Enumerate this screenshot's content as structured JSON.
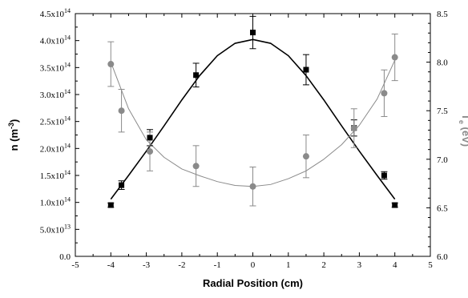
{
  "chart_data": {
    "type": "scatter",
    "title": "",
    "xlabel": "Radial Position (cm)",
    "ylabel": "n (m",
    "ylabel_sup": "-3",
    "ylabel_suffix": ")",
    "y2label_main": "T",
    "y2label_sub": "e",
    "y2label_rest": "(eV)",
    "xlim": [
      -5,
      5
    ],
    "ylim": [
      0,
      450000000000000.0
    ],
    "y2lim": [
      6.0,
      8.5
    ],
    "x_ticks": [
      "-5",
      "-4",
      "-3",
      "-2",
      "-1",
      "0",
      "1",
      "2",
      "3",
      "4",
      "5"
    ],
    "y_ticks": [
      {
        "mant": "0.0",
        "exp": ""
      },
      {
        "mant": "5.0x10",
        "exp": "13"
      },
      {
        "mant": "1.0x10",
        "exp": "14"
      },
      {
        "mant": "1.5x10",
        "exp": "14"
      },
      {
        "mant": "2.0x10",
        "exp": "14"
      },
      {
        "mant": "2.5x10",
        "exp": "14"
      },
      {
        "mant": "3.0x10",
        "exp": "14"
      },
      {
        "mant": "3.5x10",
        "exp": "14"
      },
      {
        "mant": "4.0x10",
        "exp": "14"
      },
      {
        "mant": "4.5x10",
        "exp": "14"
      }
    ],
    "y2_ticks": [
      "6.0",
      "6.5",
      "7.0",
      "7.5",
      "8.0",
      "8.5"
    ],
    "grid": false,
    "series": [
      {
        "axis": "left",
        "marker": "square",
        "color": "#000000",
        "x": [
          -4.0,
          -3.7,
          -2.9,
          -1.6,
          0.0,
          1.5,
          2.85,
          3.7,
          4.0
        ],
        "y": [
          95000000000000.0,
          132000000000000.0,
          220000000000000.0,
          336000000000000.0,
          415000000000000.0,
          346000000000000.0,
          238000000000000.0,
          150000000000000.0,
          95000000000000.0
        ],
        "err": [
          4000000000000.0,
          8000000000000.0,
          15000000000000.0,
          22000000000000.0,
          30000000000000.0,
          28000000000000.0,
          15000000000000.0,
          7000000000000.0,
          4000000000000.0
        ]
      },
      {
        "axis": "right",
        "marker": "circle",
        "color": "#8a8a8a",
        "x": [
          -4.0,
          -3.7,
          -2.9,
          -1.6,
          0.0,
          1.5,
          2.85,
          3.7,
          4.0
        ],
        "y": [
          7.98,
          7.5,
          7.08,
          6.93,
          6.72,
          7.03,
          7.32,
          7.68,
          8.05
        ],
        "err": [
          0.23,
          0.22,
          0.2,
          0.21,
          0.2,
          0.22,
          0.2,
          0.24,
          0.24
        ]
      }
    ],
    "fits": [
      {
        "axis": "left",
        "color": "#000000",
        "width": 1.6,
        "x": [
          -4.0,
          -3.5,
          -3.0,
          -2.5,
          -2.0,
          -1.5,
          -1.0,
          -0.5,
          0.0,
          0.5,
          1.0,
          1.5,
          2.0,
          2.5,
          3.0,
          3.5,
          4.0
        ],
        "y": [
          106000000000000.0,
          150000000000000.0,
          195000000000000.0,
          242000000000000.0,
          290000000000000.0,
          335000000000000.0,
          372000000000000.0,
          395000000000000.0,
          402000000000000.0,
          395000000000000.0,
          372000000000000.0,
          335000000000000.0,
          290000000000000.0,
          242000000000000.0,
          195000000000000.0,
          150000000000000.0,
          106000000000000.0
        ]
      },
      {
        "axis": "right",
        "color": "#8a8a8a",
        "width": 1.0,
        "x": [
          -4.0,
          -3.5,
          -3.0,
          -2.5,
          -2.0,
          -1.5,
          -1.0,
          -0.5,
          0.0,
          0.5,
          1.0,
          1.5,
          2.0,
          2.5,
          3.0,
          3.5,
          4.0
        ],
        "y": [
          8.0,
          7.52,
          7.2,
          7.02,
          6.9,
          6.83,
          6.77,
          6.73,
          6.72,
          6.74,
          6.8,
          6.88,
          7.0,
          7.15,
          7.35,
          7.62,
          8.02
        ]
      }
    ]
  }
}
